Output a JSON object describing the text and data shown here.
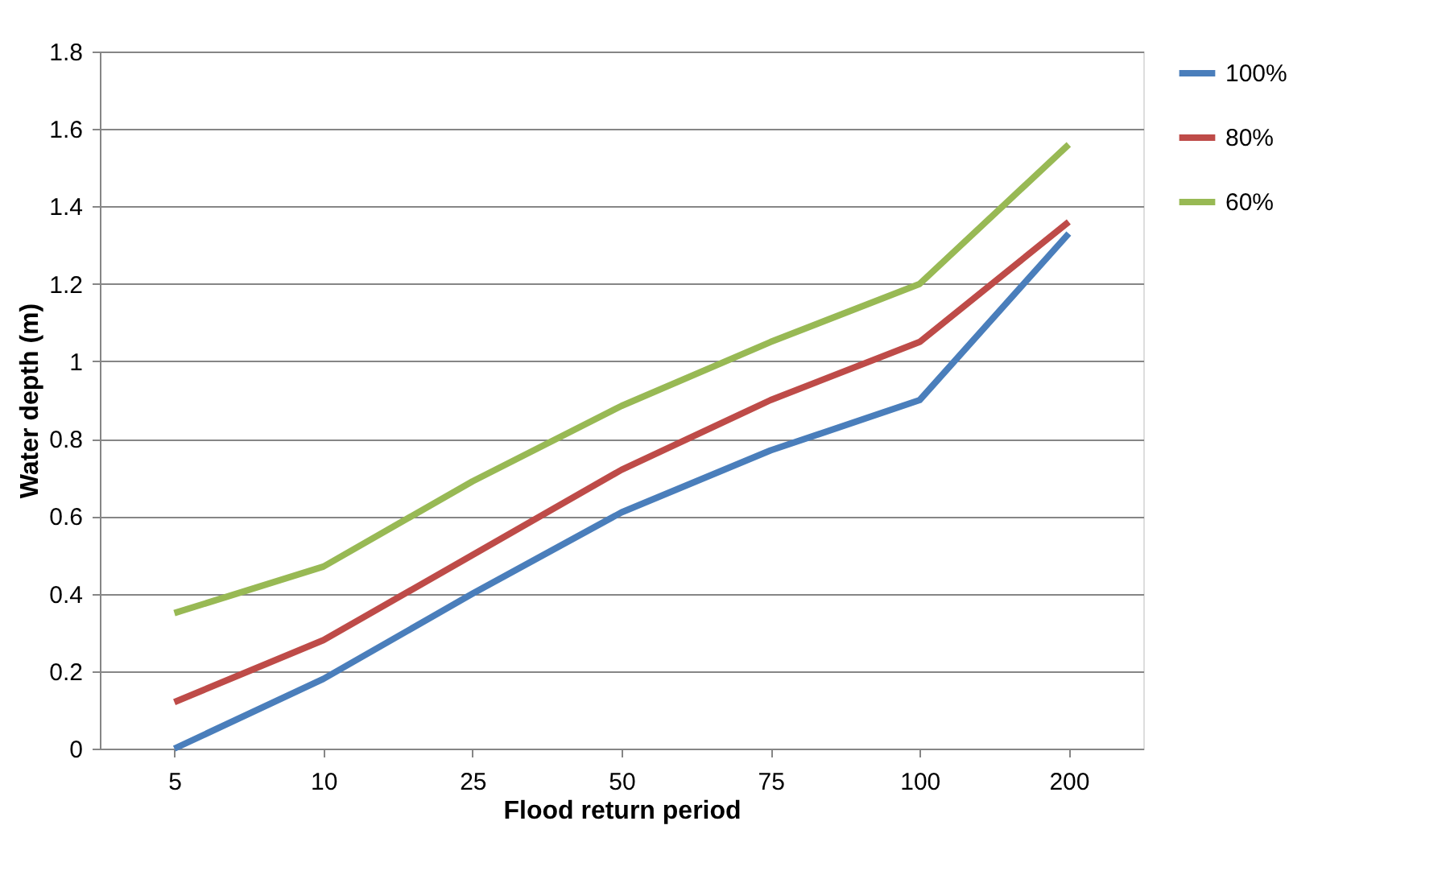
{
  "chart_data": {
    "type": "line",
    "xlabel": "Flood return period",
    "ylabel": "Water depth (m)",
    "categories": [
      "5",
      "10",
      "25",
      "50",
      "75",
      "100",
      "200"
    ],
    "series": [
      {
        "name": "100%",
        "color": "#4a7ebb",
        "values": [
          0,
          0.18,
          0.4,
          0.61,
          0.77,
          0.9,
          1.33
        ]
      },
      {
        "name": "80%",
        "color": "#be4b48",
        "values": [
          0.12,
          0.28,
          0.5,
          0.72,
          0.9,
          1.05,
          1.36
        ]
      },
      {
        "name": "60%",
        "color": "#98b954",
        "values": [
          0.35,
          0.47,
          0.69,
          0.885,
          1.05,
          1.2,
          1.56
        ]
      }
    ],
    "ylim": [
      0,
      1.8
    ],
    "yticks": [
      0,
      0.2,
      0.4,
      0.6,
      0.8,
      1,
      1.2,
      1.4,
      1.6,
      1.8
    ],
    "grid": "y",
    "legend": "right",
    "marker": "none",
    "line_style": "solid"
  }
}
